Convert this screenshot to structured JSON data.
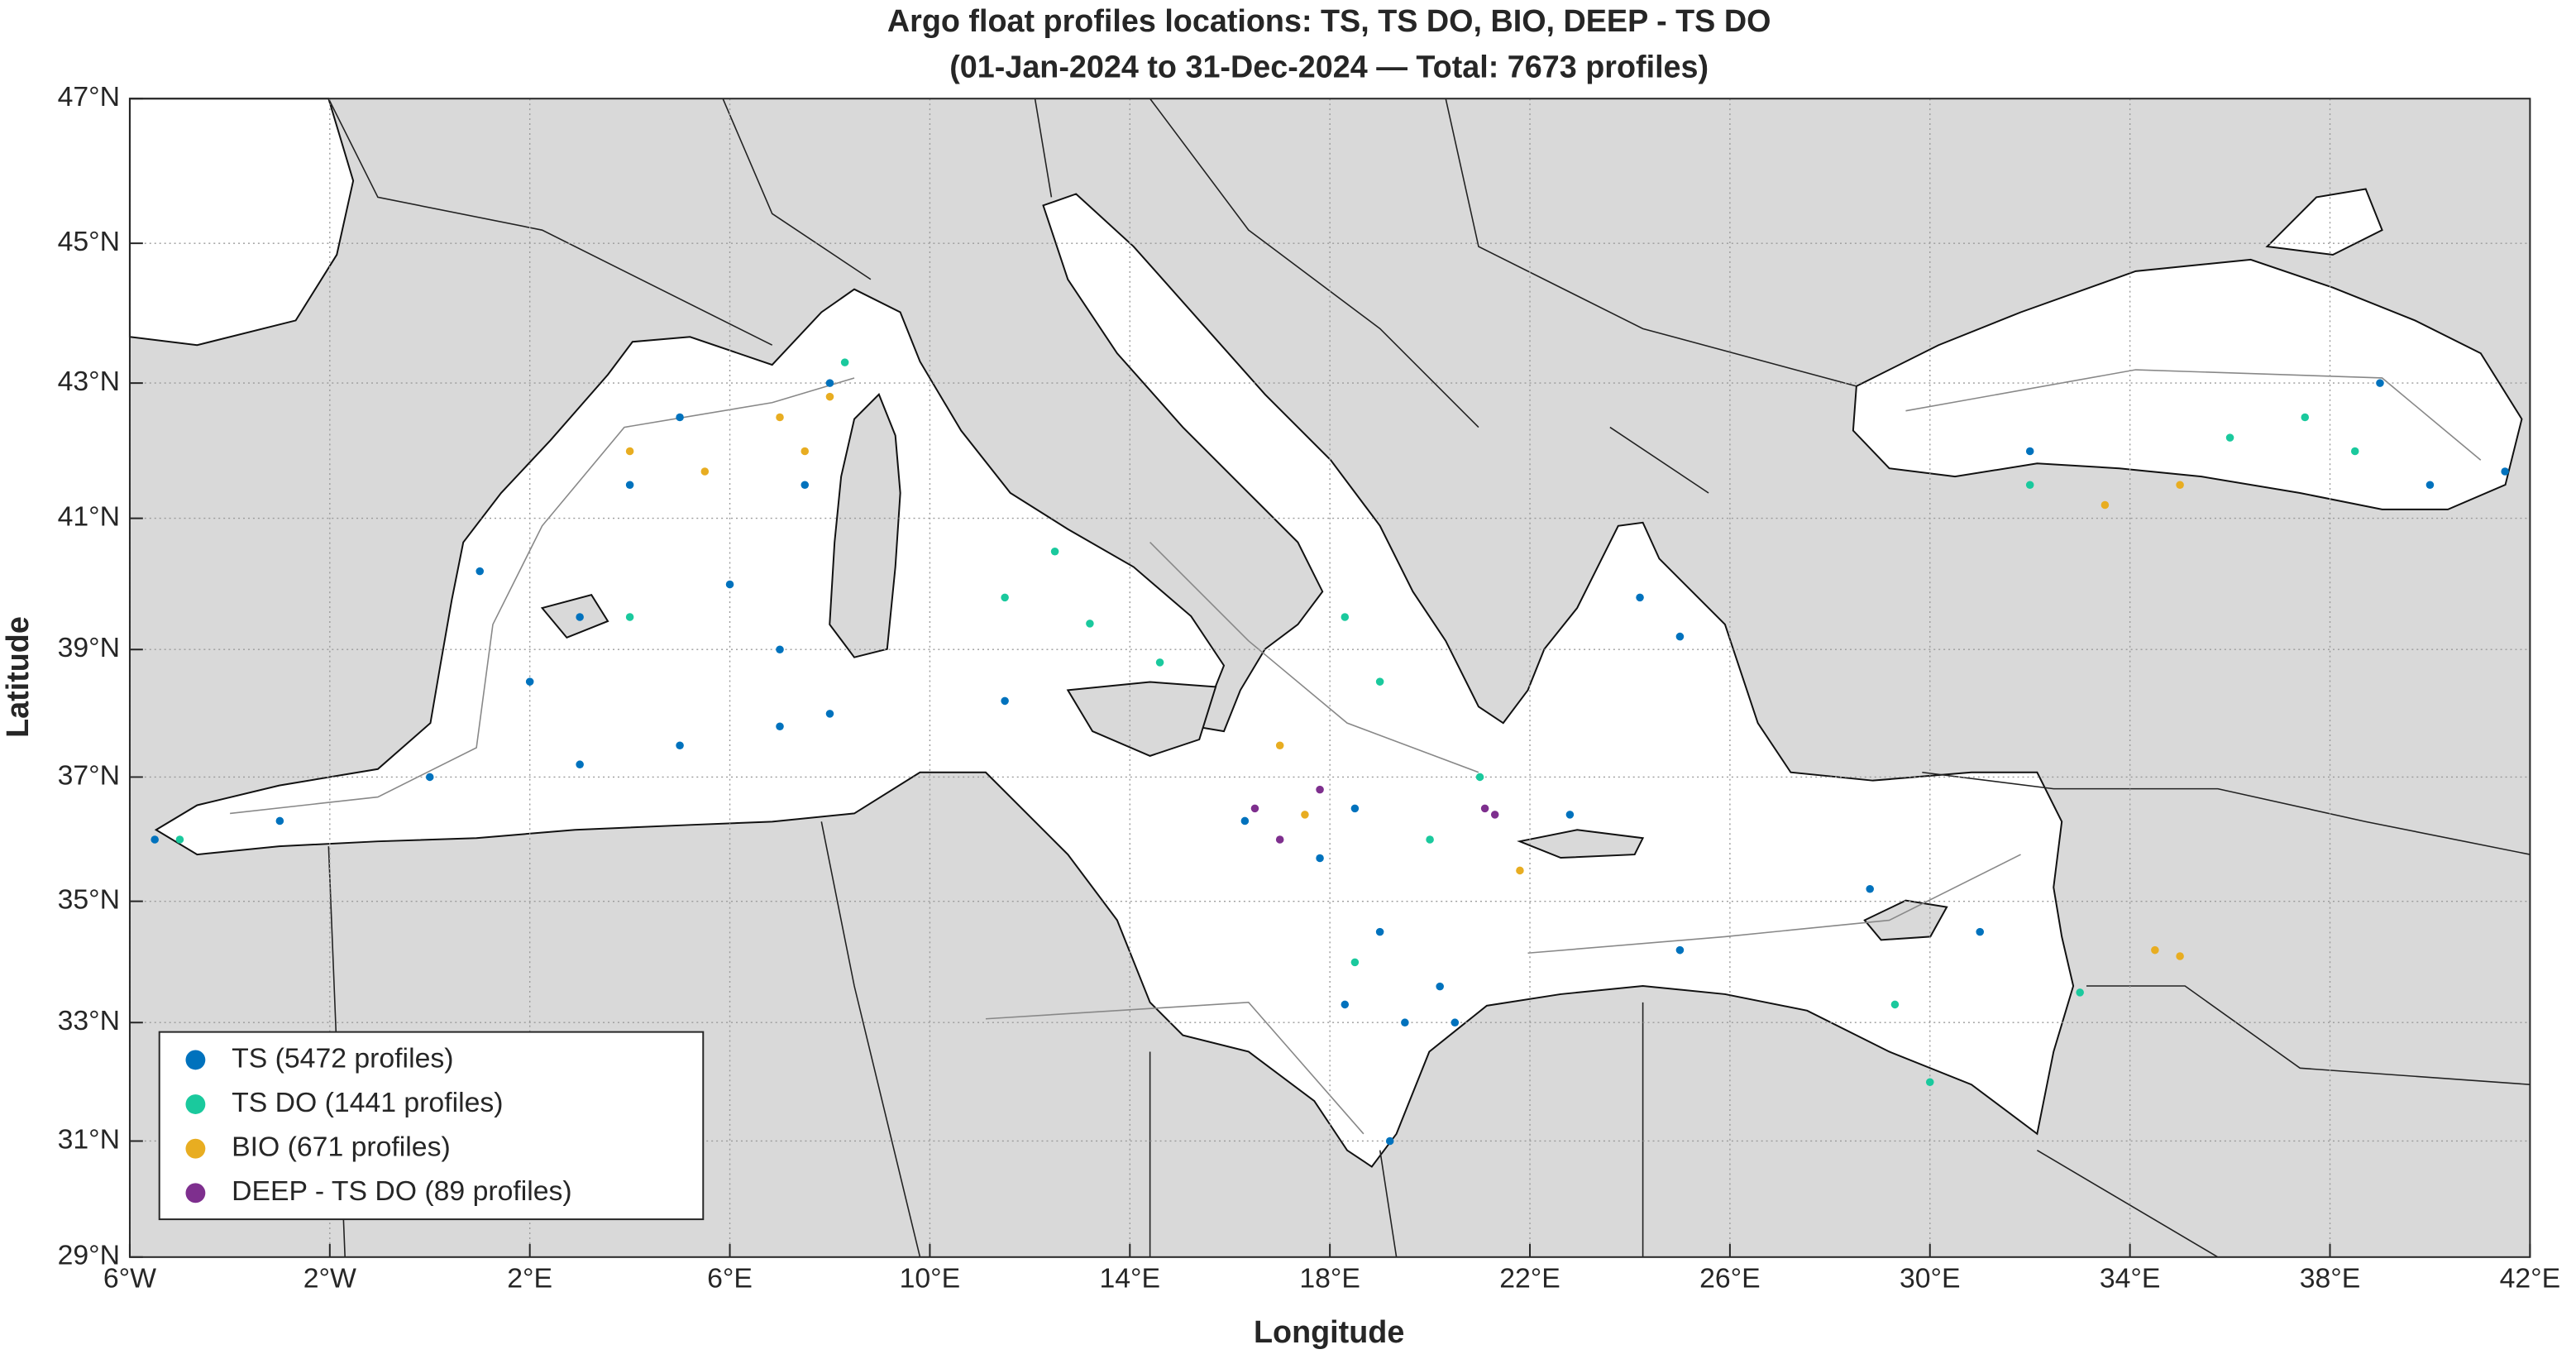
{
  "chart_data": {
    "type": "scatter",
    "title": "Argo float profiles locations: TS, TS DO, BIO, DEEP - TS DO",
    "subtitle": "(01-Jan-2024 to 31-Dec-2024 — Total: 7673 profiles)",
    "x_label": "Longitude",
    "y_label": "Latitude",
    "xlim": [
      -6,
      42
    ],
    "ylim": [
      29,
      47
    ],
    "xticks": [
      {
        "value": -6,
        "label": "6°W"
      },
      {
        "value": -2,
        "label": "2°W"
      },
      {
        "value": 2,
        "label": "2°E"
      },
      {
        "value": 6,
        "label": "6°E"
      },
      {
        "value": 10,
        "label": "10°E"
      },
      {
        "value": 14,
        "label": "14°E"
      },
      {
        "value": 18,
        "label": "18°E"
      },
      {
        "value": 22,
        "label": "22°E"
      },
      {
        "value": 26,
        "label": "26°E"
      },
      {
        "value": 30,
        "label": "30°E"
      },
      {
        "value": 34,
        "label": "34°E"
      },
      {
        "value": 38,
        "label": "38°E"
      },
      {
        "value": 42,
        "label": "42°E"
      }
    ],
    "yticks": [
      {
        "value": 29,
        "label": "29°N"
      },
      {
        "value": 31,
        "label": "31°N"
      },
      {
        "value": 33,
        "label": "33°N"
      },
      {
        "value": 35,
        "label": "35°N"
      },
      {
        "value": 37,
        "label": "37°N"
      },
      {
        "value": 39,
        "label": "39°N"
      },
      {
        "value": 41,
        "label": "41°N"
      },
      {
        "value": 43,
        "label": "43°N"
      },
      {
        "value": 45,
        "label": "45°N"
      },
      {
        "value": 47,
        "label": "47°N"
      }
    ],
    "grid": true,
    "projection": "mercator",
    "legend": "lower left",
    "series": [
      {
        "name": "TS (5472 profiles)",
        "color": "#0072bd",
        "points": [
          [
            -5.5,
            36.0
          ],
          [
            -3,
            36.3
          ],
          [
            0,
            37.0
          ],
          [
            2,
            38.5
          ],
          [
            3,
            39.5
          ],
          [
            4,
            41.5
          ],
          [
            5,
            42.5
          ],
          [
            6,
            40
          ],
          [
            7,
            39
          ],
          [
            8,
            38
          ],
          [
            3,
            37.2
          ],
          [
            5,
            37.5
          ],
          [
            7,
            37.8
          ],
          [
            1,
            40.2
          ],
          [
            8,
            43
          ],
          [
            11.5,
            38.2
          ],
          [
            16.3,
            36.3
          ],
          [
            17.8,
            35.7
          ],
          [
            18.5,
            36.5
          ],
          [
            19,
            34.5
          ],
          [
            19.5,
            33
          ],
          [
            18.3,
            33.3
          ],
          [
            19.2,
            31
          ],
          [
            20.2,
            33.6
          ],
          [
            20.5,
            33
          ],
          [
            22.8,
            36.4
          ],
          [
            24.2,
            39.8
          ],
          [
            25,
            39.2
          ],
          [
            25,
            34.2
          ],
          [
            28.8,
            35.2
          ],
          [
            31,
            34.5
          ],
          [
            32,
            42
          ],
          [
            40,
            41.5
          ],
          [
            41.5,
            41.7
          ],
          [
            39,
            43
          ],
          [
            7.5,
            41.5
          ]
        ]
      },
      {
        "name": "TS DO (1441 profiles)",
        "color": "#1ac99d",
        "points": [
          [
            8.3,
            43.3
          ],
          [
            12.5,
            40.5
          ],
          [
            11.5,
            39.8
          ],
          [
            13.2,
            39.4
          ],
          [
            14.6,
            38.8
          ],
          [
            18.3,
            39.5
          ],
          [
            19,
            38.5
          ],
          [
            21,
            37
          ],
          [
            18.5,
            34
          ],
          [
            20,
            36
          ],
          [
            29.3,
            33.3
          ],
          [
            30,
            32
          ],
          [
            33,
            33.5
          ],
          [
            36,
            42.2
          ],
          [
            37.5,
            42.5
          ],
          [
            38.5,
            42
          ],
          [
            32,
            41.5
          ],
          [
            -5,
            36
          ],
          [
            4,
            39.5
          ]
        ]
      },
      {
        "name": "BIO (671 profiles)",
        "color": "#e8ad21",
        "points": [
          [
            4,
            42
          ],
          [
            7,
            42.5
          ],
          [
            7.5,
            42
          ],
          [
            8,
            42.8
          ],
          [
            5.5,
            41.7
          ],
          [
            17,
            37.5
          ],
          [
            17.5,
            36.4
          ],
          [
            21.8,
            35.5
          ],
          [
            34.5,
            34.2
          ],
          [
            35,
            34.1
          ],
          [
            33.5,
            41.2
          ],
          [
            35,
            41.5
          ]
        ]
      },
      {
        "name": "DEEP - TS DO (89 profiles)",
        "color": "#7e2f8e",
        "points": [
          [
            16.5,
            36.5
          ],
          [
            17,
            36.0
          ],
          [
            17.8,
            36.8
          ],
          [
            21.3,
            36.4
          ],
          [
            21.1,
            36.5
          ]
        ]
      }
    ]
  }
}
